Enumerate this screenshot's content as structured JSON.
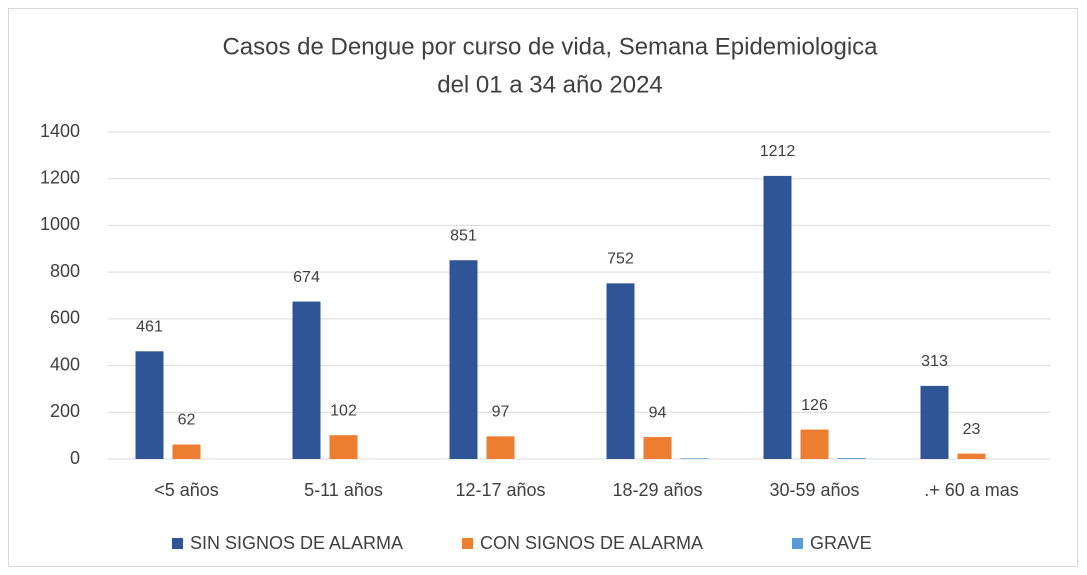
{
  "chart_data": {
    "type": "bar",
    "title": [
      "Casos de Dengue por curso de vida, Semana Epidemiologica",
      "del 01 a 34   año 2024"
    ],
    "categories": [
      "<5 años",
      "5-11 años",
      "12-17 años",
      "18-29 años",
      "30-59 años",
      ".+ 60 a mas"
    ],
    "series": [
      {
        "name": "SIN SIGNOS DE ALARMA",
        "color": "#2f5597",
        "values": [
          461,
          674,
          851,
          752,
          1212,
          313
        ],
        "labels": true
      },
      {
        "name": "CON SIGNOS DE ALARMA",
        "color": "#ed7d31",
        "values": [
          62,
          102,
          97,
          94,
          126,
          23
        ],
        "labels": true
      },
      {
        "name": "GRAVE",
        "color": "#5b9bd5",
        "values": [
          0,
          0,
          0,
          3,
          4,
          0
        ],
        "labels": false
      }
    ],
    "ylim": [
      0,
      1400
    ],
    "yticks": [
      0,
      200,
      400,
      600,
      800,
      1000,
      1200,
      1400
    ],
    "grid": true,
    "legend": "bottom"
  }
}
